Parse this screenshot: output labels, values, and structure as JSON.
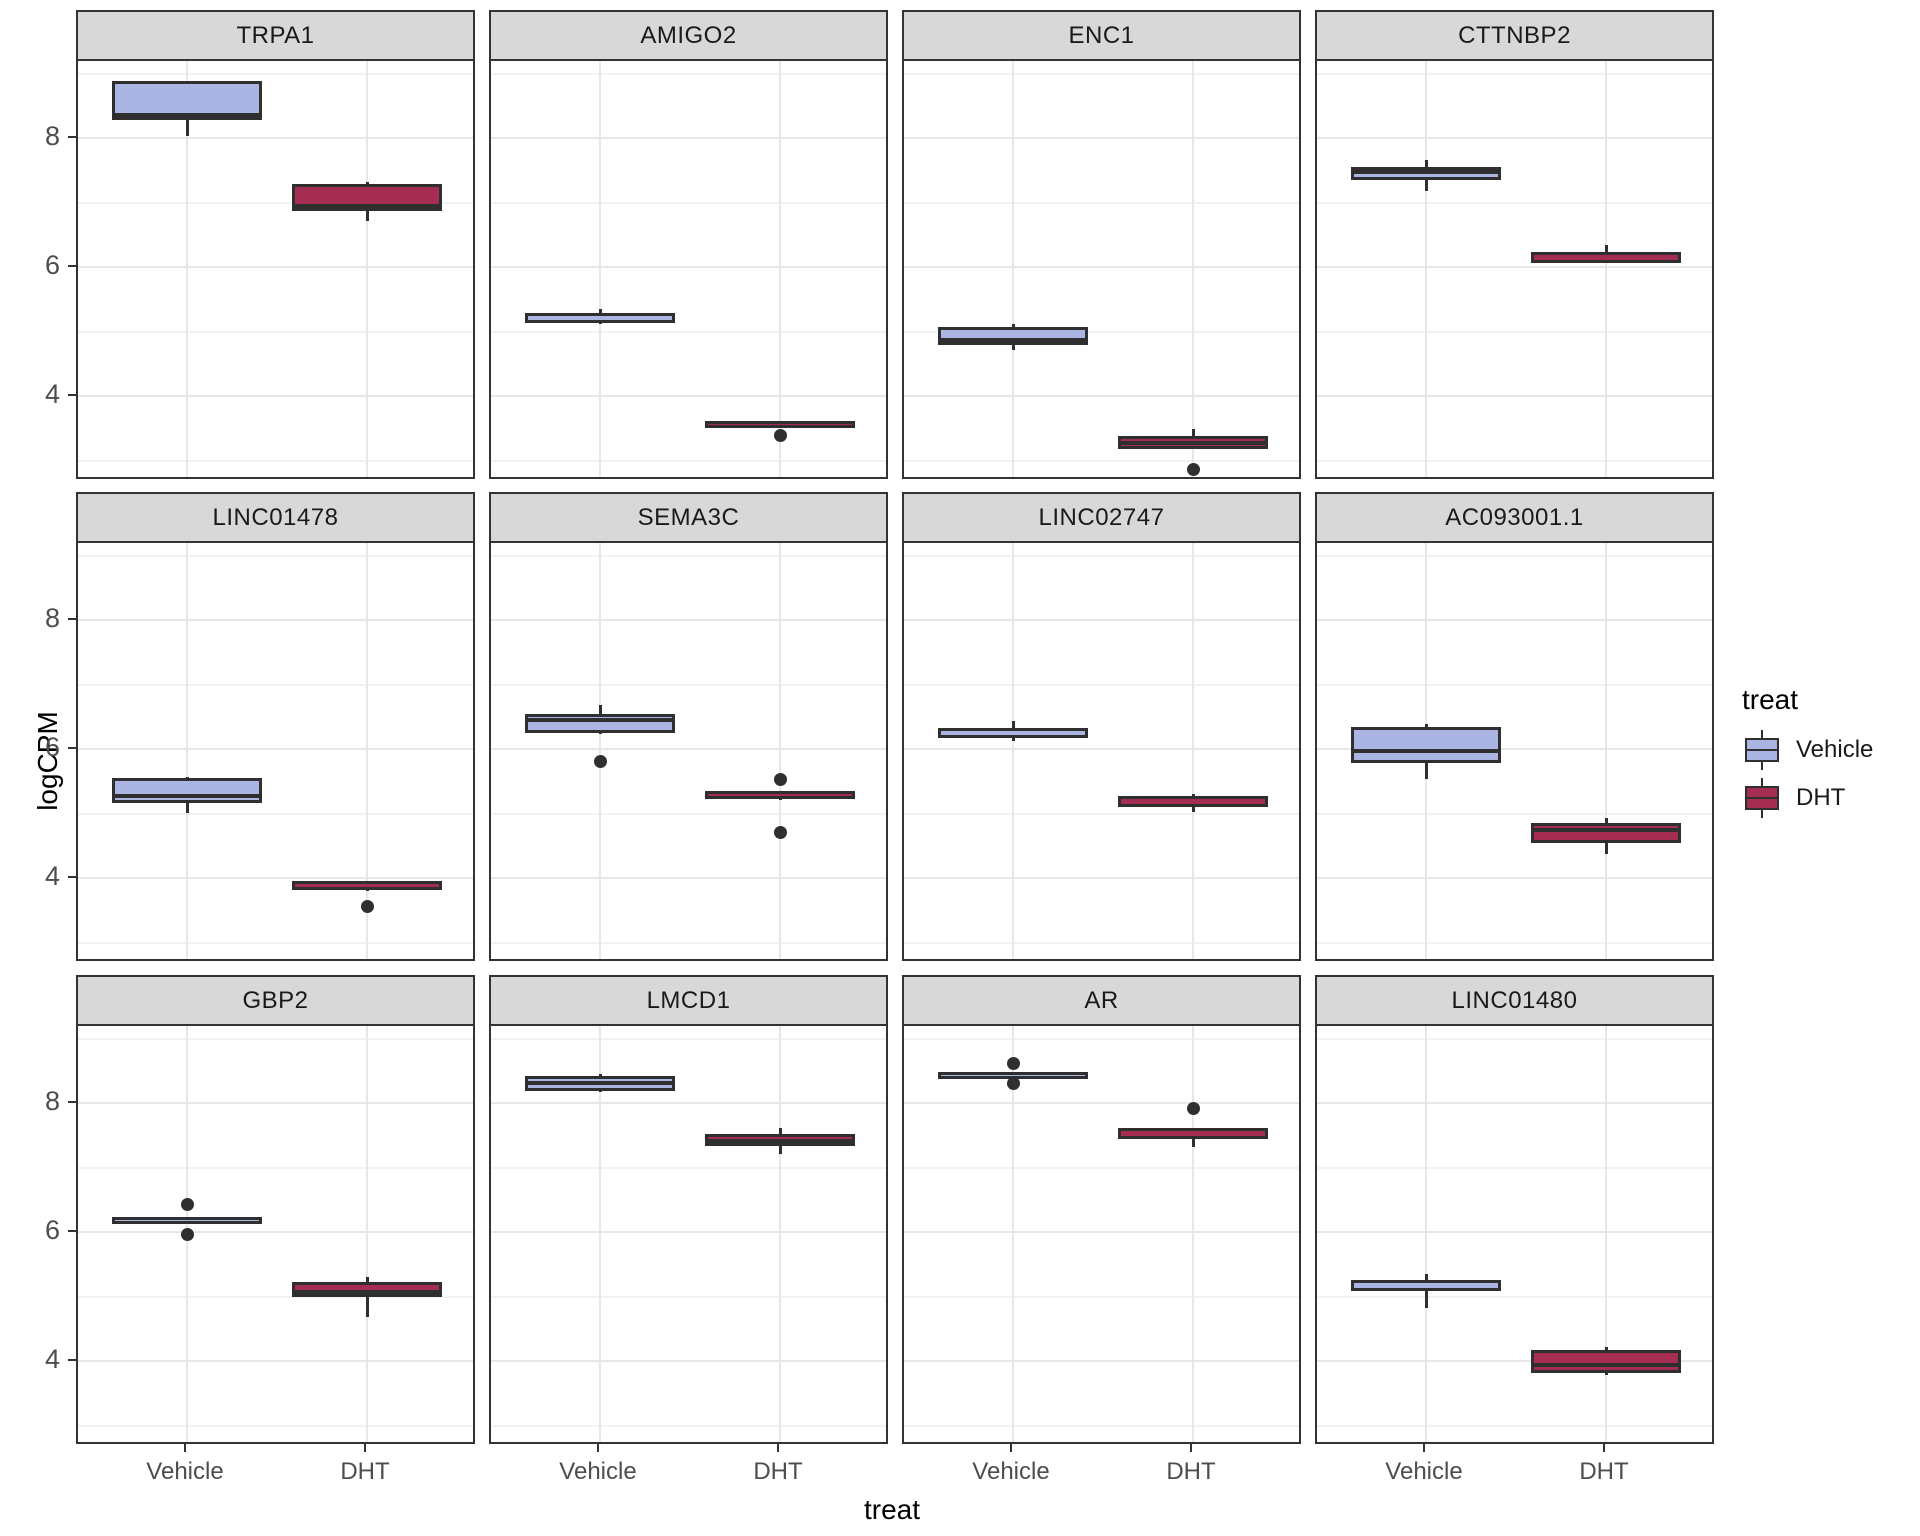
{
  "axes": {
    "y_label": "logCPM",
    "x_label": "treat",
    "y_ticks": [
      8,
      6,
      4
    ],
    "y_minor": [
      9,
      7,
      5,
      3
    ],
    "x_categories": [
      "Vehicle",
      "DHT"
    ]
  },
  "legend": {
    "title": "treat",
    "entries": [
      {
        "label": "Vehicle",
        "color": "#aab5e3"
      },
      {
        "label": "DHT",
        "color": "#a52d52"
      }
    ]
  },
  "colors": {
    "vehicle_fill": "#aab5e3",
    "dht_fill": "#a52d52",
    "box_border": "#2f2f2f",
    "strip_bg": "#d8d8d8",
    "grid_major": "#e7e7e7",
    "grid_minor": "#f2f2f2"
  },
  "chart_data": {
    "type": "boxplot",
    "faceting": "3 rows x 4 columns, shared y scale",
    "ylabel": "logCPM",
    "xlabel": "treat",
    "ylim_shown": [
      2.7,
      9.18
    ],
    "categories": [
      "Vehicle",
      "DHT"
    ],
    "facets": [
      {
        "gene": "TRPA1",
        "boxes": [
          {
            "treat": "Vehicle",
            "min": 8.02,
            "q1": 8.26,
            "median": 8.31,
            "q3": 8.87,
            "max": 8.87,
            "outliers": []
          },
          {
            "treat": "DHT",
            "min": 6.7,
            "q1": 6.85,
            "median": 6.9,
            "q3": 7.27,
            "max": 7.31,
            "outliers": []
          }
        ]
      },
      {
        "gene": "AMIGO2",
        "boxes": [
          {
            "treat": "Vehicle",
            "min": 5.1,
            "q1": 5.12,
            "median": 5.18,
            "q3": 5.27,
            "max": 5.33,
            "outliers": []
          },
          {
            "treat": "DHT",
            "min": 3.52,
            "q1": 3.52,
            "median": 3.56,
            "q3": 3.6,
            "max": 3.6,
            "outliers": [
              3.37
            ]
          }
        ]
      },
      {
        "gene": "ENC1",
        "boxes": [
          {
            "treat": "Vehicle",
            "min": 4.7,
            "q1": 4.78,
            "median": 4.85,
            "q3": 5.06,
            "max": 5.1,
            "outliers": []
          },
          {
            "treat": "DHT",
            "min": 3.16,
            "q1": 3.16,
            "median": 3.28,
            "q3": 3.36,
            "max": 3.47,
            "outliers": [
              2.84
            ]
          }
        ]
      },
      {
        "gene": "CTTNBP2",
        "boxes": [
          {
            "treat": "Vehicle",
            "min": 7.16,
            "q1": 7.34,
            "median": 7.49,
            "q3": 7.54,
            "max": 7.65,
            "outliers": []
          },
          {
            "treat": "DHT",
            "min": 6.04,
            "q1": 6.04,
            "median": 6.12,
            "q3": 6.22,
            "max": 6.33,
            "outliers": []
          }
        ]
      },
      {
        "gene": "LINC01478",
        "boxes": [
          {
            "treat": "Vehicle",
            "min": 4.99,
            "q1": 5.14,
            "median": 5.28,
            "q3": 5.53,
            "max": 5.55,
            "outliers": []
          },
          {
            "treat": "DHT",
            "min": 3.79,
            "q1": 3.8,
            "median": 3.87,
            "q3": 3.94,
            "max": 3.94,
            "outliers": [
              3.55
            ]
          }
        ]
      },
      {
        "gene": "SEMA3C",
        "boxes": [
          {
            "treat": "Vehicle",
            "min": 6.23,
            "q1": 6.24,
            "median": 6.46,
            "q3": 6.53,
            "max": 6.66,
            "outliers": [
              5.79
            ]
          },
          {
            "treat": "DHT",
            "min": 5.2,
            "q1": 5.21,
            "median": 5.26,
            "q3": 5.34,
            "max": 5.34,
            "outliers": [
              5.51,
              4.69
            ]
          }
        ]
      },
      {
        "gene": "LINC02747",
        "boxes": [
          {
            "treat": "Vehicle",
            "min": 6.11,
            "q1": 6.16,
            "median": 6.25,
            "q3": 6.31,
            "max": 6.42,
            "outliers": []
          },
          {
            "treat": "DHT",
            "min": 5.01,
            "q1": 5.08,
            "median": 5.12,
            "q3": 5.26,
            "max": 5.29,
            "outliers": []
          }
        ]
      },
      {
        "gene": "AC093001.1",
        "boxes": [
          {
            "treat": "Vehicle",
            "min": 5.52,
            "q1": 5.76,
            "median": 5.98,
            "q3": 6.33,
            "max": 6.37,
            "outliers": []
          },
          {
            "treat": "DHT",
            "min": 4.35,
            "q1": 4.53,
            "median": 4.76,
            "q3": 4.83,
            "max": 4.92,
            "outliers": []
          }
        ]
      },
      {
        "gene": "GBP2",
        "boxes": [
          {
            "treat": "Vehicle",
            "min": 6.14,
            "q1": 6.15,
            "median": 6.18,
            "q3": 6.22,
            "max": 6.22,
            "outliers": [
              6.41,
              5.95
            ]
          },
          {
            "treat": "DHT",
            "min": 4.66,
            "q1": 4.97,
            "median": 5.01,
            "q3": 5.21,
            "max": 5.28,
            "outliers": []
          }
        ]
      },
      {
        "gene": "LMCD1",
        "boxes": [
          {
            "treat": "Vehicle",
            "min": 8.15,
            "q1": 8.17,
            "median": 8.33,
            "q3": 8.4,
            "max": 8.44,
            "outliers": []
          },
          {
            "treat": "DHT",
            "min": 7.2,
            "q1": 7.32,
            "median": 7.42,
            "q3": 7.51,
            "max": 7.6,
            "outliers": []
          }
        ]
      },
      {
        "gene": "AR",
        "boxes": [
          {
            "treat": "Vehicle",
            "min": 8.34,
            "q1": 8.35,
            "median": 8.4,
            "q3": 8.46,
            "max": 8.46,
            "outliers": [
              8.59,
              8.28
            ]
          },
          {
            "treat": "DHT",
            "min": 7.3,
            "q1": 7.43,
            "median": 7.53,
            "q3": 7.6,
            "max": 7.6,
            "outliers": [
              7.9
            ]
          }
        ]
      },
      {
        "gene": "LINC01480",
        "boxes": [
          {
            "treat": "Vehicle",
            "min": 4.8,
            "q1": 5.07,
            "median": 5.13,
            "q3": 5.24,
            "max": 5.34,
            "outliers": []
          },
          {
            "treat": "DHT",
            "min": 3.76,
            "q1": 3.8,
            "median": 3.96,
            "q3": 4.16,
            "max": 4.2,
            "outliers": []
          }
        ]
      }
    ]
  }
}
